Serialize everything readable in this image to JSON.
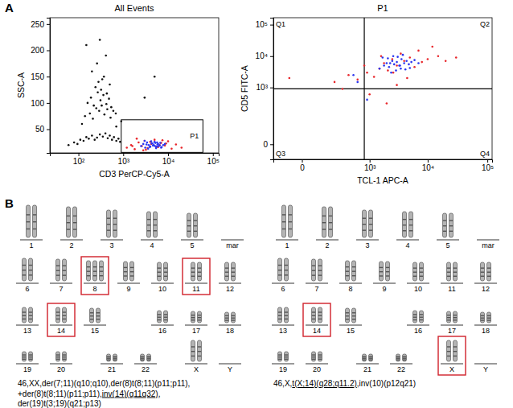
{
  "panels": [
    "A",
    "B"
  ],
  "chart_data": [
    {
      "type": "scatter",
      "title": "All Events",
      "x_label": "CD3 PerCP-Cy5-A",
      "y_label": "SSC-A",
      "log": "x",
      "grid": false,
      "marker": "circle",
      "xlim": [
        23,
        135000
      ],
      "xticks": [
        {
          "value": 100,
          "label": "10²"
        },
        {
          "value": 1000,
          "label": "10³"
        },
        {
          "value": 10000,
          "label": "10⁴"
        },
        {
          "value": 100000,
          "label": "10⁵"
        }
      ],
      "ylim": [
        5,
        262
      ],
      "yticks": [
        50,
        100,
        150,
        200,
        250
      ],
      "series": [
        {
          "color": "#111111",
          "x": [
            60,
            80,
            95,
            110,
            130,
            150,
            170,
            200,
            230,
            260,
            300,
            350,
            400,
            450,
            500,
            560,
            620,
            700,
            780,
            850,
            120,
            140,
            180,
            210,
            250,
            290,
            330,
            380,
            440,
            520,
            160,
            190,
            220,
            270,
            310,
            360,
            420,
            480,
            540,
            600,
            680,
            240,
            280,
            320,
            370,
            430,
            500,
            200,
            260,
            340,
            410,
            150,
            300,
            700,
            900,
            3000,
            5000
          ],
          "values": [
            20,
            25,
            22,
            30,
            28,
            35,
            32,
            38,
            30,
            34,
            40,
            36,
            42,
            33,
            38,
            30,
            35,
            28,
            32,
            26,
            60,
            75,
            80,
            70,
            90,
            85,
            95,
            78,
            88,
            72,
            100,
            110,
            95,
            120,
            105,
            115,
            98,
            108,
            92,
            85,
            80,
            130,
            140,
            125,
            150,
            118,
            135,
            160,
            175,
            145,
            190,
            210,
            220,
            55,
            65,
            110,
            150
          ]
        },
        {
          "color": "#e8262b",
          "x": [
            1200,
            1500,
            1800,
            2200,
            2600,
            3000,
            3500,
            4200,
            5000,
            6000,
            7000,
            8500,
            10000,
            12000,
            15000,
            2000,
            2800,
            4000,
            5500,
            7500,
            9000,
            1600,
            3200,
            6500,
            20000
          ],
          "values": [
            15,
            20,
            12,
            25,
            18,
            28,
            14,
            22,
            30,
            16,
            24,
            19,
            27,
            13,
            21,
            32,
            10,
            26,
            17,
            29,
            23,
            18,
            11,
            20,
            15
          ]
        },
        {
          "color": "#2a35f0",
          "x": [
            2500,
            2800,
            3100,
            3400,
            3700,
            4000,
            4300,
            4600,
            5000,
            5400,
            5800,
            6200,
            6700,
            7200,
            7800,
            8500,
            3000,
            3600,
            4200,
            4800,
            5200,
            5600,
            6000,
            6500,
            7000,
            3300,
            3900,
            4500,
            5100,
            5700
          ],
          "values": [
            18,
            22,
            15,
            25,
            20,
            17,
            23,
            19,
            26,
            14,
            21,
            18,
            24,
            16,
            20,
            22,
            28,
            13,
            27,
            20,
            24,
            17,
            22,
            19,
            15,
            21,
            16,
            23,
            18,
            25
          ]
        }
      ],
      "annotations": [
        {
          "shape": "rect",
          "text": "P1",
          "x": [
            900,
            60000
          ],
          "y": [
            6,
            68
          ]
        }
      ]
    },
    {
      "type": "scatter",
      "title": "P1",
      "x_label": "TCL-1 APC-A",
      "y_label": "CD5 FITC-A",
      "log": true,
      "grid": false,
      "marker": "circle",
      "xlim": [
        -160,
        120000
      ],
      "xticks": [
        0,
        {
          "value": 1000,
          "label": "10³"
        },
        {
          "value": 10000,
          "label": "10⁴"
        },
        {
          "value": 100000,
          "label": "10⁵"
        }
      ],
      "ylim": [
        -32,
        166000
      ],
      "yticks": [
        0,
        {
          "value": 1000,
          "label": "10³"
        },
        {
          "value": 10000,
          "label": "10⁴"
        },
        {
          "value": 100000,
          "label": "10⁵"
        }
      ],
      "series": [
        {
          "color": "#e8262b",
          "x": [
            200,
            400,
            600,
            900,
            1200,
            1500,
            1800,
            2100,
            2500,
            3000,
            3500,
            4000,
            5000,
            6000,
            8000,
            10000,
            15000,
            20000,
            30000,
            1000,
            2000,
            3000,
            4500,
            7000,
            12000,
            -50,
            300,
            800,
            1600,
            2600
          ],
          "values": [
            1500,
            2500,
            1800,
            3000,
            2200,
            4000,
            6000,
            3500,
            8000,
            5000,
            12000,
            7000,
            9000,
            4500,
            6500,
            8000,
            10000,
            7000,
            9000,
            600,
            300,
            1200,
            2000,
            15000,
            20000,
            2000,
            900,
            5000,
            10000,
            3000
          ]
        },
        {
          "color": "#2a35f0",
          "x": [
            1500,
            1800,
            2000,
            2200,
            2500,
            2700,
            3000,
            3300,
            3600,
            4000,
            4400,
            4800,
            5300,
            6000,
            7000,
            2400,
            2900,
            3500,
            4200,
            5000,
            1700,
            2100,
            2600,
            3100,
            3800,
            600,
            500,
            900,
            2300,
            3400
          ],
          "values": [
            4000,
            5000,
            6000,
            4500,
            7000,
            5500,
            6500,
            5000,
            8000,
            6000,
            7000,
            5500,
            6500,
            7500,
            6000,
            3000,
            3500,
            4000,
            3800,
            4200,
            9000,
            8500,
            10000,
            9500,
            11000,
            1500,
            2500,
            400,
            6000,
            5000
          ]
        }
      ],
      "annotations": [
        {
          "shape": "quadrant",
          "x": 800,
          "y": 900,
          "texts": [
            "Q1",
            "Q2",
            "Q3",
            "Q4"
          ]
        }
      ]
    }
  ],
  "karyotypes": [
    {
      "rows": [
        {
          "labels": [
            "1",
            "2",
            "3",
            "4",
            "5",
            "mar"
          ],
          "copies": [
            2,
            2,
            2,
            2,
            2,
            0
          ]
        },
        {
          "labels": [
            "6",
            "7",
            "8",
            "9",
            "10",
            "11",
            "12"
          ],
          "copies": [
            2,
            2,
            3,
            2,
            2,
            2,
            2
          ]
        },
        {
          "labels": [
            "13",
            "14",
            "15",
            "16",
            "17",
            "18"
          ],
          "copies": [
            2,
            2,
            2,
            2,
            2,
            2
          ]
        },
        {
          "labels": [
            "19",
            "20",
            "21",
            "22",
            "X",
            "Y"
          ],
          "copies": [
            2,
            2,
            2,
            2,
            2,
            0
          ]
        }
      ],
      "highlight": [
        "8",
        "11",
        "14"
      ],
      "caption": [
        [
          {
            "text": "46,XX,der(7;11)(q10;q10),der(8)t(8;11)(p11;p11),",
            "underline": false
          }
        ],
        [
          {
            "text": "+der(8)t(8;11)(p11;p11),",
            "underline": false
          },
          {
            "text": "inv(14)(q11q32)",
            "underline": true
          },
          {
            "text": ",",
            "underline": false
          }
        ],
        [
          {
            "text": "der(19)t(3;19)(q21;p13)",
            "underline": false
          }
        ]
      ]
    },
    {
      "rows": [
        {
          "labels": [
            "1",
            "2",
            "3",
            "4",
            "5",
            "mar"
          ],
          "copies": [
            2,
            2,
            2,
            2,
            2,
            0
          ]
        },
        {
          "labels": [
            "6",
            "7",
            "8",
            "9",
            "10",
            "11",
            "12"
          ],
          "copies": [
            2,
            2,
            2,
            2,
            2,
            2,
            2
          ]
        },
        {
          "labels": [
            "13",
            "14",
            "15",
            "16",
            "17",
            "18"
          ],
          "copies": [
            2,
            2,
            2,
            2,
            2,
            2
          ]
        },
        {
          "labels": [
            "19",
            "20",
            "21",
            "22",
            "X",
            "Y"
          ],
          "copies": [
            2,
            2,
            2,
            2,
            2,
            0
          ]
        }
      ],
      "highlight": [
        "14",
        "X"
      ],
      "caption": [
        [
          {
            "text": "46,X,",
            "underline": false
          },
          {
            "text": "t(X;14)(q28;q11.2)",
            "underline": true
          },
          {
            "text": ",inv(10)(p12q21)",
            "underline": false
          }
        ]
      ]
    }
  ]
}
